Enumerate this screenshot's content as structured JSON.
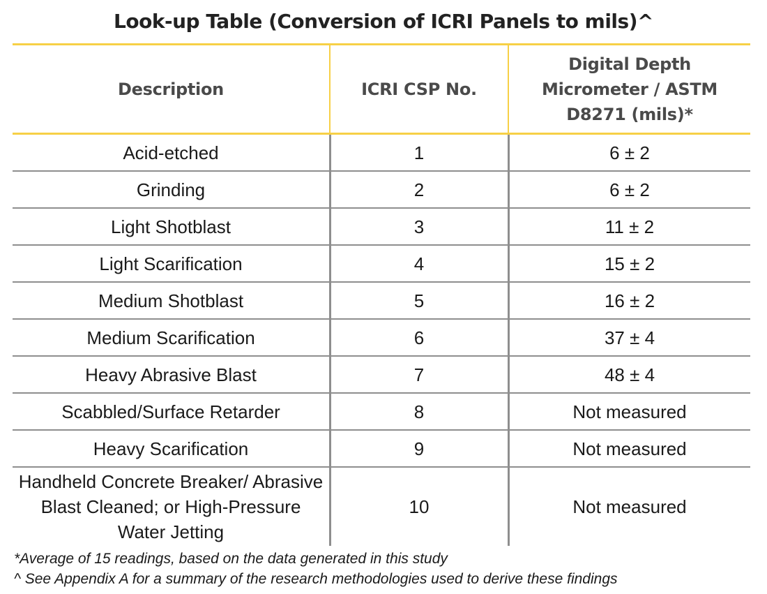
{
  "title": "Look-up Table (Conversion of ICRI Panels to mils)^",
  "table": {
    "headers": [
      "Description",
      "ICRI CSP No.",
      "Digital Depth Micrometer / ASTM D8271 (mils)*"
    ],
    "rows": [
      {
        "description": "Acid-etched",
        "csp": "1",
        "depth": "6 ± 2"
      },
      {
        "description": "Grinding",
        "csp": "2",
        "depth": "6 ± 2"
      },
      {
        "description": "Light Shotblast",
        "csp": "3",
        "depth": "11 ± 2"
      },
      {
        "description": "Light Scarification",
        "csp": "4",
        "depth": "15 ± 2"
      },
      {
        "description": "Medium Shotblast",
        "csp": "5",
        "depth": "16 ± 2"
      },
      {
        "description": "Medium Scarification",
        "csp": "6",
        "depth": "37 ± 4"
      },
      {
        "description": "Heavy Abrasive Blast",
        "csp": "7",
        "depth": "48 ± 4"
      },
      {
        "description": "Scabbled/Surface Retarder",
        "csp": "8",
        "depth": "Not measured"
      },
      {
        "description": "Heavy Scarification",
        "csp": "9",
        "depth": "Not measured"
      },
      {
        "description": "Handheld Concrete Breaker/ Abrasive Blast Cleaned; or High-Pressure Water Jetting",
        "csp": "10",
        "depth": "Not measured"
      }
    ]
  },
  "footnotes": [
    "*Average of 15 readings, based on the data generated in this study",
    "^ See Appendix A for a summary of the research methodologies used to derive these findings"
  ],
  "colors": {
    "accent": "#f7d046",
    "grid": "#8e8e8e"
  }
}
